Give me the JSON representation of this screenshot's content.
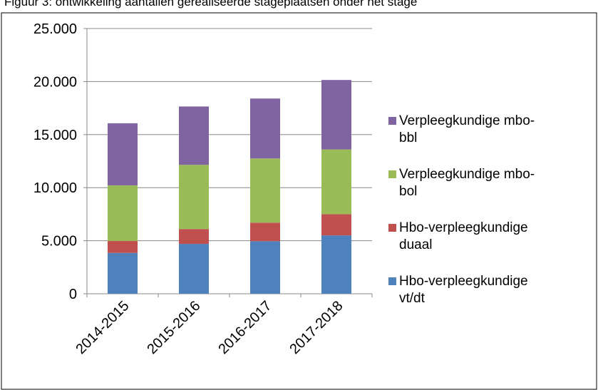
{
  "chart_data": {
    "type": "stacked_bar",
    "title": "Figuur 3: ontwikkeling aantallen gerealiseerde stageplaatsen onder het stage",
    "categories": [
      "2014-2015",
      "2015-2016",
      "2016-2017",
      "2017-2018"
    ],
    "series": [
      {
        "name": "Hbo-verpleegkundige vt/dt",
        "color": "#4f81bd",
        "values": [
          3850,
          4700,
          4950,
          5500
        ]
      },
      {
        "name": "Hbo-verpleegkundige duaal",
        "color": "#c0504d",
        "values": [
          1120,
          1400,
          1750,
          2000
        ]
      },
      {
        "name": "Verpleegkundige mbo-bol",
        "color": "#9bbb59",
        "values": [
          5250,
          6050,
          6050,
          6100
        ]
      },
      {
        "name": "Verpleegkundige mbo-bbl",
        "color": "#8064a2",
        "values": [
          5850,
          5500,
          5650,
          6550
        ]
      }
    ],
    "ylim": [
      0,
      25000
    ],
    "yticks": [
      {
        "value": 0,
        "label": "0"
      },
      {
        "value": 5000,
        "label": "5.000"
      },
      {
        "value": 10000,
        "label": "10.000"
      },
      {
        "value": 15000,
        "label": "15.000"
      },
      {
        "value": 20000,
        "label": "20.000"
      },
      {
        "value": 25000,
        "label": "25.000"
      }
    ],
    "grid": true,
    "legend": "right"
  }
}
